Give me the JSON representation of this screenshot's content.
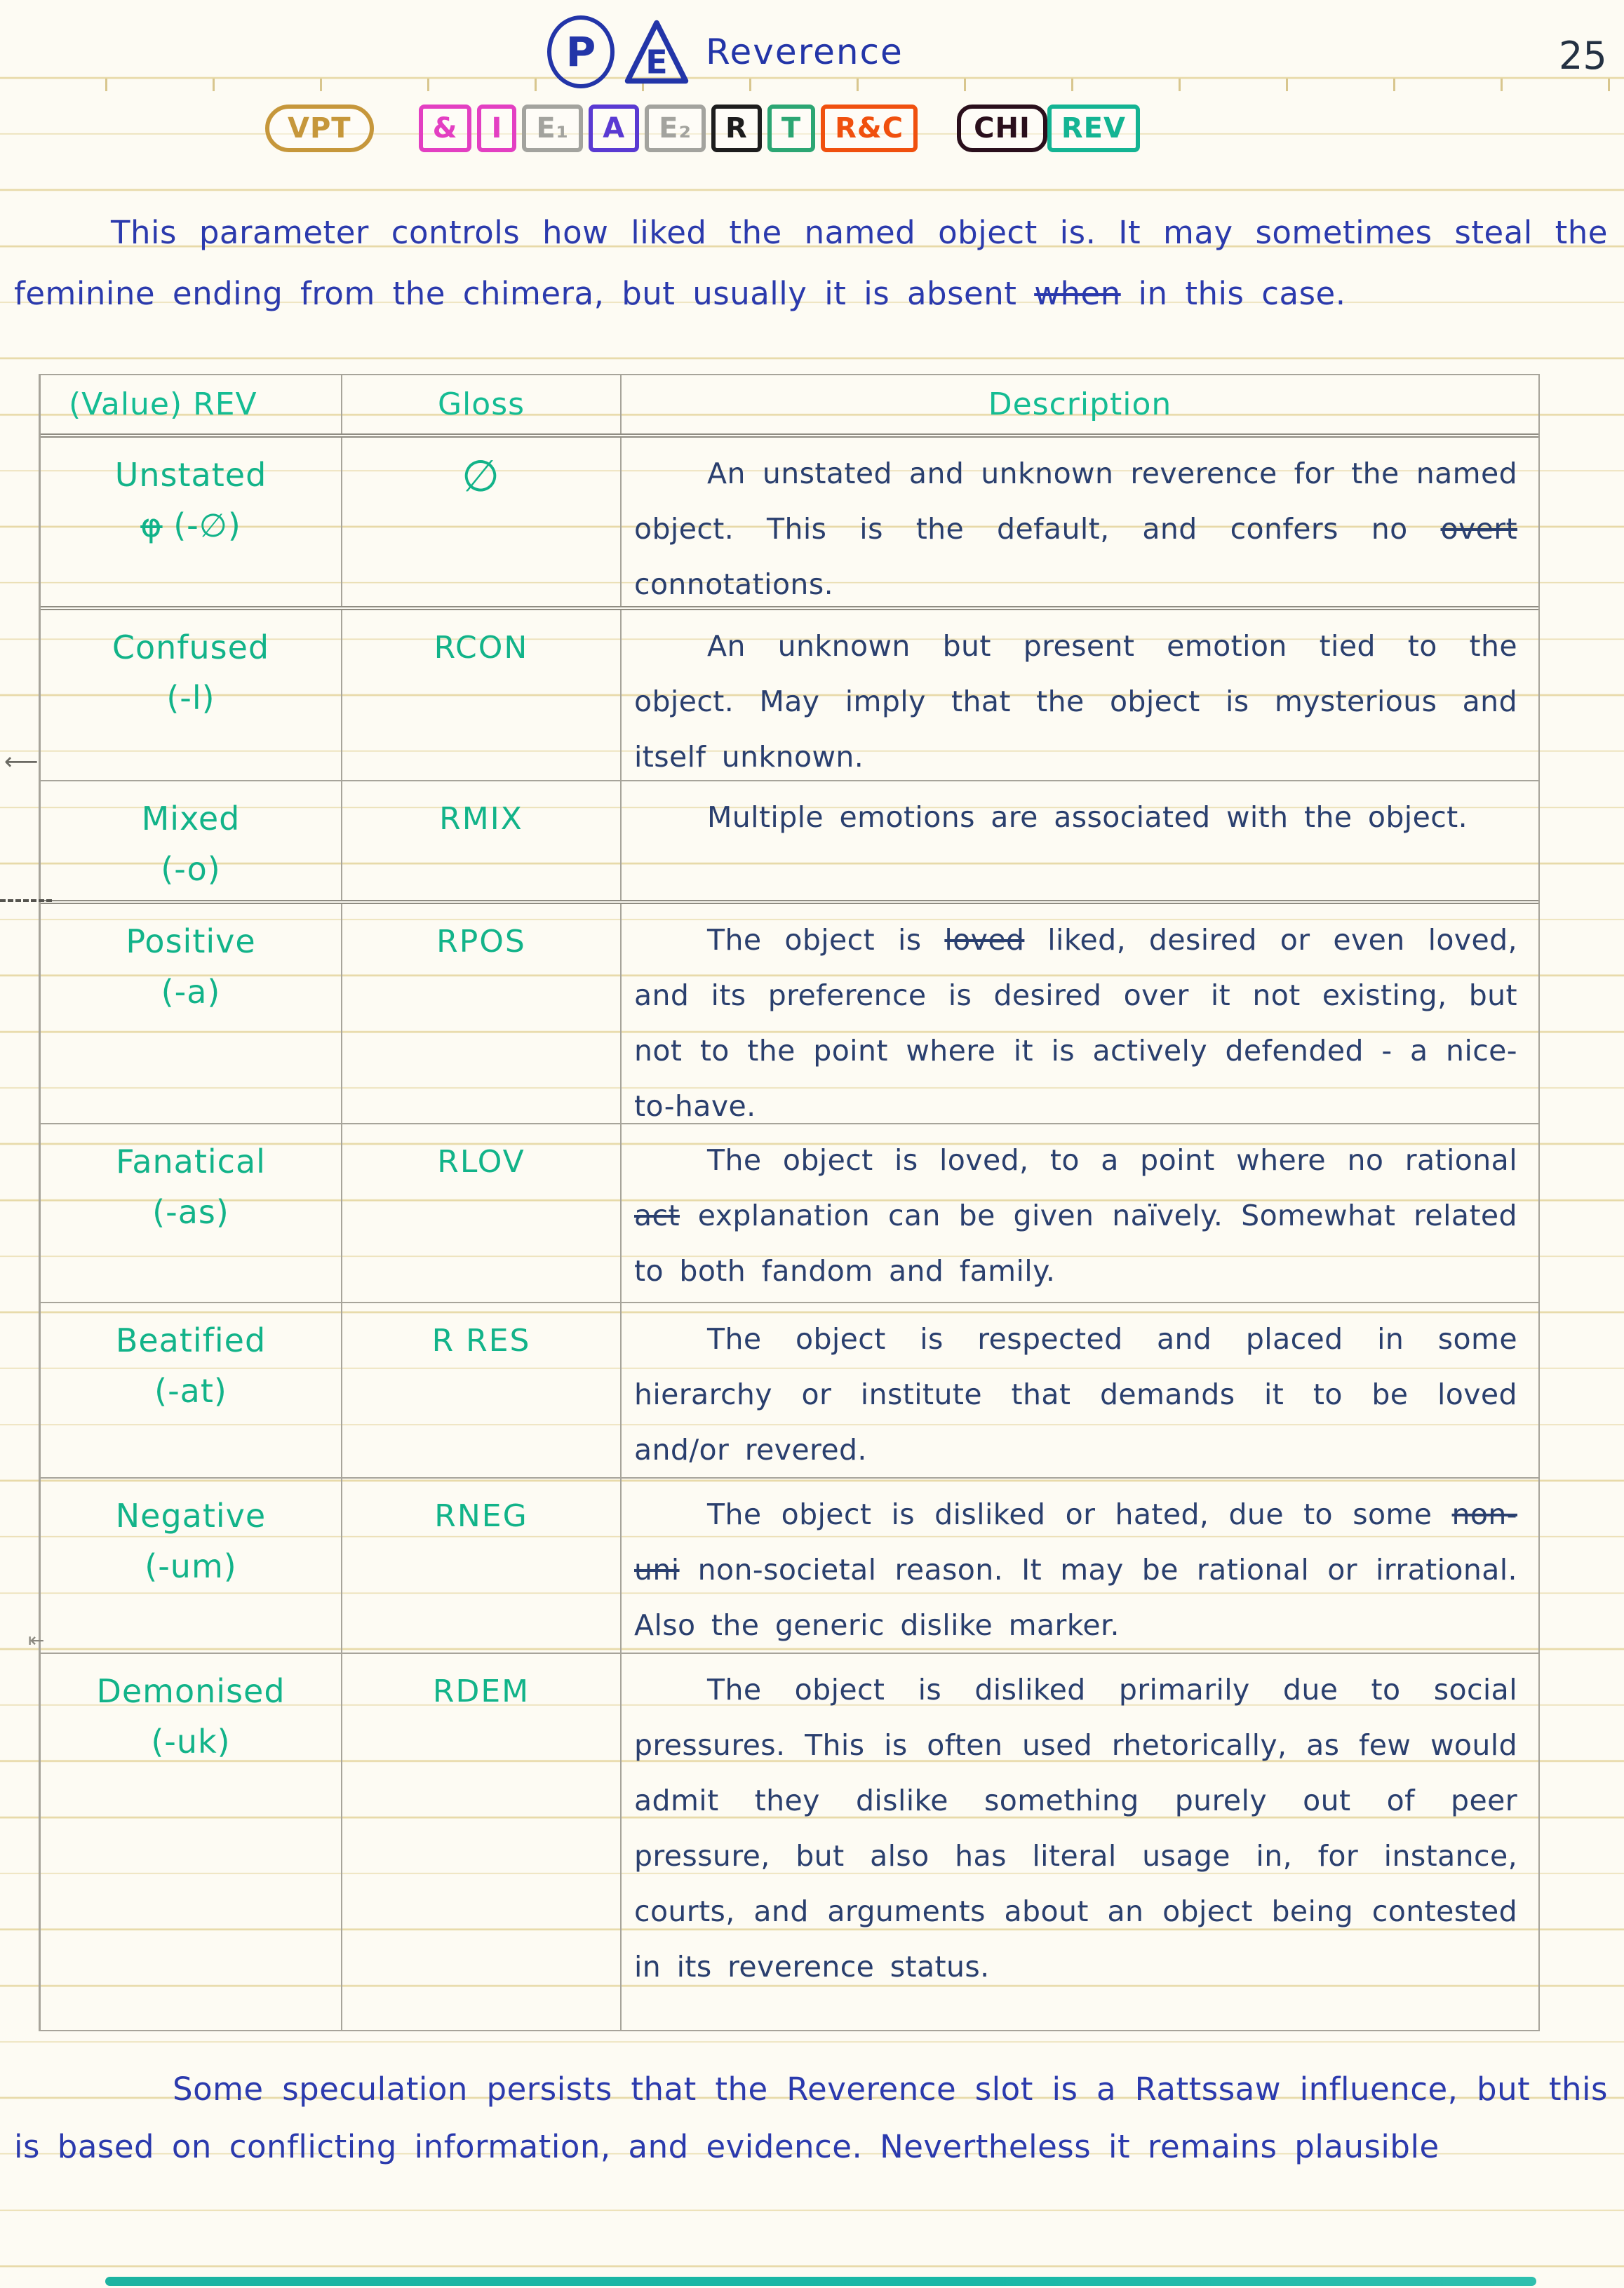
{
  "page": {
    "number": "25",
    "title": "Reverence",
    "symbol_circle": "P",
    "symbol_triangle": "E"
  },
  "badges": [
    {
      "label": "VPT",
      "color": "#c6973b",
      "shape": "oval"
    },
    {
      "label": "&",
      "color": "#e33fc2",
      "shape": "square"
    },
    {
      "label": "I",
      "color": "#e33fc2",
      "shape": "square"
    },
    {
      "label": "E₁",
      "color": "#a3a39e",
      "shape": "square"
    },
    {
      "label": "A",
      "color": "#5a3ad2",
      "shape": "square"
    },
    {
      "label": "E₂",
      "color": "#a3a39e",
      "shape": "square"
    },
    {
      "label": "R",
      "color": "#1d1d1d",
      "shape": "square"
    },
    {
      "label": "T",
      "color": "#2ca673",
      "shape": "square"
    },
    {
      "label": "R&C",
      "color": "#f0500e",
      "shape": "square"
    },
    {
      "label": "CHI",
      "color": "#2a0f1c",
      "shape": "roundrect"
    },
    {
      "label": "REV",
      "color": "#14b493",
      "shape": "square"
    }
  ],
  "intro": {
    "segments": [
      {
        "text": "This parameter controls how liked the named object is. It may sometimes steal the feminine ending from the chimera, but usually it is absent ",
        "struck": false
      },
      {
        "text": "when",
        "struck": true
      },
      {
        "text": " in this case.",
        "struck": false
      }
    ]
  },
  "table": {
    "headers": {
      "value": "(Value) REV",
      "gloss": "Gloss",
      "description": "Description"
    },
    "rows": [
      {
        "value": "Unstated",
        "suffix_segments": [
          {
            "text": "φ",
            "struck": true
          },
          {
            "text": " (-∅)",
            "struck": false
          }
        ],
        "gloss": "∅",
        "desc_segments": [
          {
            "text": "An unstated and unknown reverence for the named object. This is the default, and confers no ",
            "struck": false
          },
          {
            "text": "overt",
            "struck": true
          },
          {
            "text": " connotations.",
            "struck": false
          }
        ]
      },
      {
        "value": "Confused",
        "suffix": "(-l)",
        "gloss": "RCON",
        "desc_segments": [
          {
            "text": "An unknown but present emotion tied to the object. May imply that the object is mysterious and itself unknown.",
            "struck": false
          }
        ]
      },
      {
        "value": "Mixed",
        "suffix": "(-o)",
        "gloss": "RMIX",
        "desc_segments": [
          {
            "text": "Multiple emotions are associated with the object.",
            "struck": false
          }
        ]
      },
      {
        "value": "Positive",
        "suffix": "(-a)",
        "gloss": "RPOS",
        "desc_segments": [
          {
            "text": "The object is ",
            "struck": false
          },
          {
            "text": "loved",
            "struck": true
          },
          {
            "text": " liked, desired or even loved, and its preference is desired over it not existing, but not to the point where it is actively defended - a nice-to-have.",
            "struck": false
          }
        ]
      },
      {
        "value": "Fanatical",
        "suffix": "(-as)",
        "gloss": "RLOV",
        "desc_segments": [
          {
            "text": "The object is loved, to a point where no rational ",
            "struck": false
          },
          {
            "text": "act",
            "struck": true
          },
          {
            "text": " explanation can be given naïvely. Somewhat related to both fandom and family.",
            "struck": false
          }
        ]
      },
      {
        "value": "Beatified",
        "suffix": "(-at)",
        "gloss": "R RES",
        "desc_segments": [
          {
            "text": "The object is respected and placed in some hierarchy or institute that demands it to be loved and/or revered.",
            "struck": false
          }
        ]
      },
      {
        "value": "Negative",
        "suffix": "(-um)",
        "gloss": "RNEG",
        "desc_segments": [
          {
            "text": "The object is disliked or hated, due to some ",
            "struck": false
          },
          {
            "text": "non-uni",
            "struck": true
          },
          {
            "text": " non-societal reason. It may be rational or irrational. Also the generic dislike marker.",
            "struck": false
          }
        ]
      },
      {
        "value": "Demonised",
        "suffix": "(-uk)",
        "gloss": "RDEM",
        "desc_segments": [
          {
            "text": "The object is disliked primarily due to social pressures. This is often used rhetorically, as few would admit they dislike something purely out of peer pressure, but also has literal usage in, for instance, courts, and arguments about an object being contested in its reverence status.",
            "struck": false
          }
        ]
      }
    ]
  },
  "footer": {
    "segments": [
      {
        "text": "Some speculation persists that the Reverence slot is a Rattssaw influence, but this is based on conflicting information, and evidence. Nevertheless it remains plausible",
        "struck": false
      }
    ]
  },
  "colors": {
    "ink_blue": "#2b3aad",
    "ink_navy": "#2a3f6e",
    "ink_green": "#12b389",
    "rule": "#e7d9a7",
    "pencil": "#a7a49a"
  }
}
